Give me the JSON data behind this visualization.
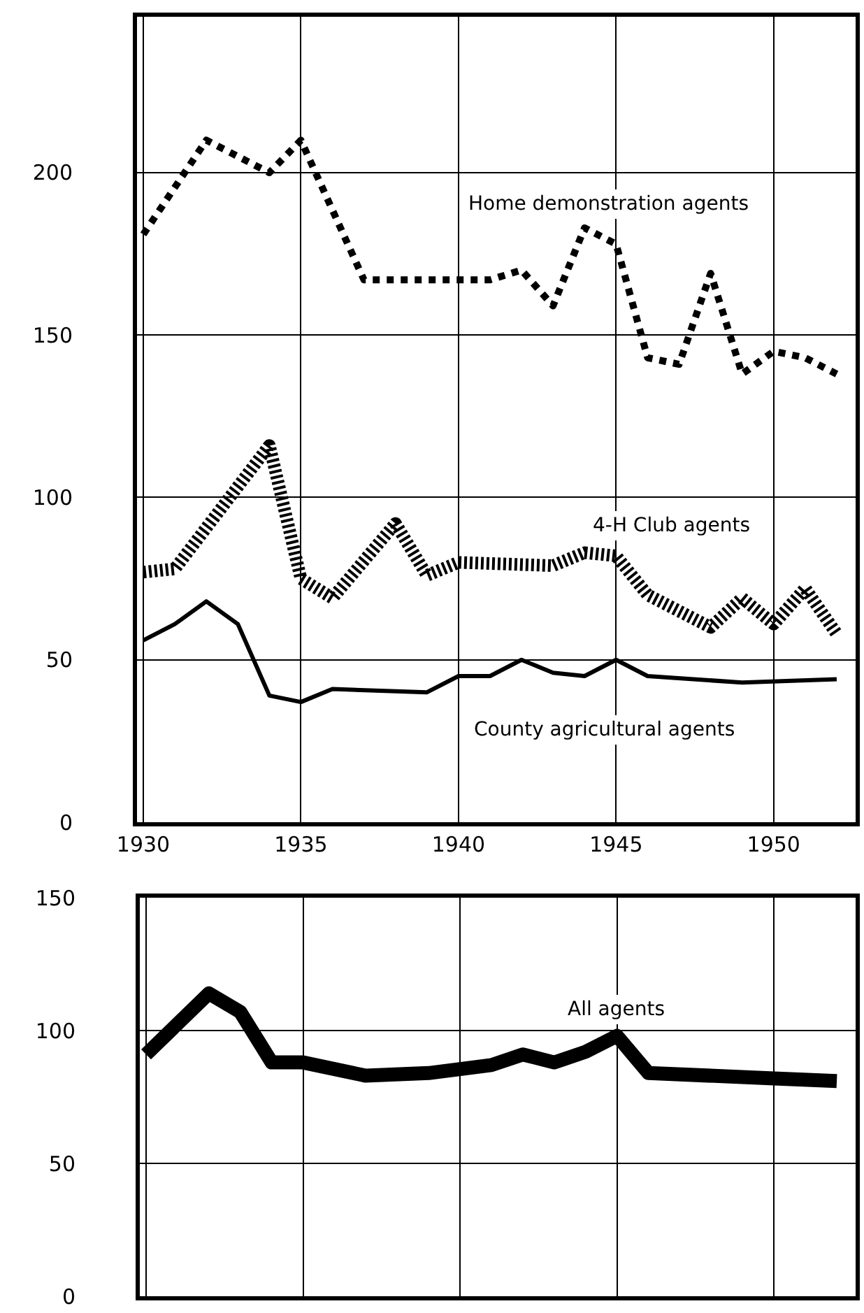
{
  "chart_data": [
    {
      "type": "line",
      "xlim": [
        1929.8,
        1952.6
      ],
      "ylim": [
        0,
        248
      ],
      "xticks": [
        1930,
        1935,
        1940,
        1945,
        1950
      ],
      "yticks": [
        0,
        50,
        100,
        150,
        200
      ],
      "grid": true,
      "series": [
        {
          "name": "Home demonstration agents",
          "color": "#000000",
          "line_style": "dotted",
          "x": [
            1930,
            1932,
            1934,
            1935,
            1937,
            1941,
            1942,
            1943,
            1944,
            1945,
            1946,
            1947,
            1948,
            1949,
            1950,
            1951,
            1952
          ],
          "values": [
            181,
            210,
            200,
            210,
            167,
            167,
            170,
            159,
            183,
            178,
            143,
            141,
            169,
            138,
            145,
            143,
            138
          ]
        },
        {
          "name": "4-H Club agents",
          "color": "#000000",
          "line_style": "dashed",
          "x": [
            1930,
            1931,
            1934,
            1935,
            1936,
            1938,
            1939,
            1940,
            1943,
            1944,
            1945,
            1946,
            1948,
            1949,
            1950,
            1951,
            1952
          ],
          "values": [
            77,
            78,
            116,
            75,
            69,
            92,
            76,
            80,
            79,
            83,
            82,
            70,
            60,
            69,
            61,
            72,
            58
          ]
        },
        {
          "name": "County agricultural agents",
          "color": "#000000",
          "line_style": "solid",
          "x": [
            1930,
            1931,
            1932,
            1933,
            1934,
            1935,
            1936,
            1939,
            1940,
            1941,
            1942,
            1943,
            1944,
            1945,
            1946,
            1949,
            1952
          ],
          "values": [
            56,
            61,
            68,
            61,
            39,
            37,
            41,
            40,
            45,
            45,
            50,
            46,
            45,
            50,
            45,
            43,
            44
          ]
        }
      ]
    },
    {
      "type": "line",
      "xlim": [
        1929.8,
        1952.6
      ],
      "ylim": [
        0,
        150
      ],
      "xticks": [
        1930,
        1935,
        1940,
        1945,
        1950
      ],
      "yticks": [
        0,
        50,
        100,
        150
      ],
      "grid": true,
      "tick_labels": "y",
      "series": [
        {
          "name": "All agents",
          "color": "#000000",
          "line_style": "solid",
          "x": [
            1930,
            1932,
            1933,
            1934,
            1935,
            1937,
            1939,
            1941,
            1942,
            1943,
            1944,
            1945,
            1946,
            1950,
            1952
          ],
          "values": [
            91,
            114,
            107,
            88,
            88,
            83,
            84,
            87,
            91,
            88,
            92,
            98,
            84,
            82,
            81
          ]
        }
      ]
    }
  ]
}
